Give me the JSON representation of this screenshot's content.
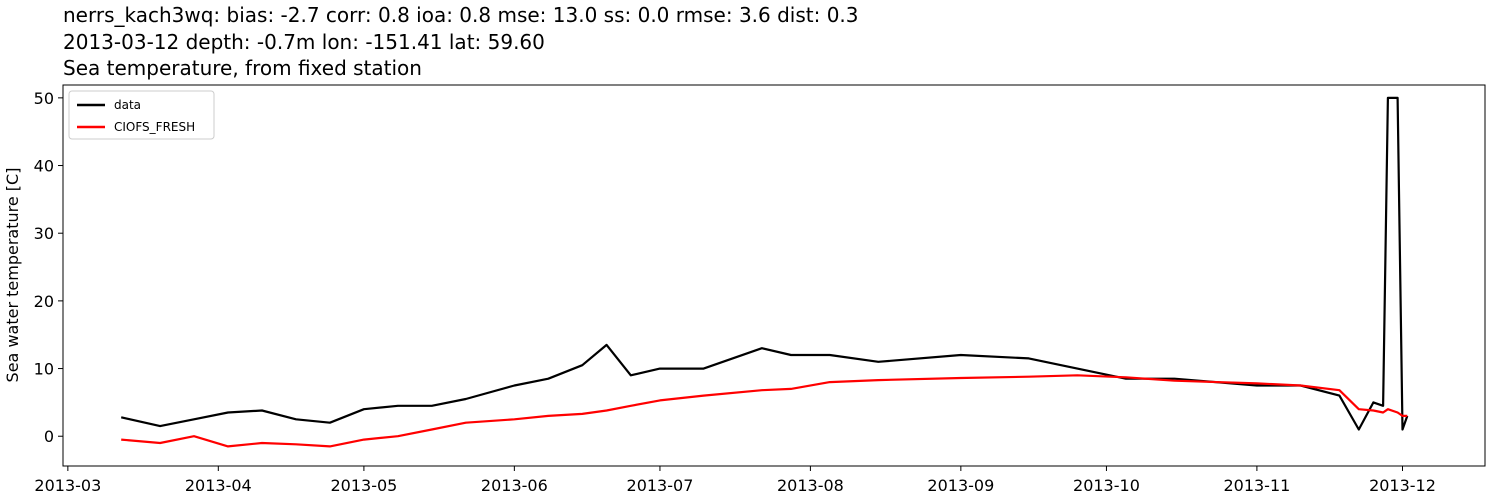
{
  "chart_data": {
    "type": "line",
    "title": "nerrs_kach3wq: bias: -2.7  corr: 0.8  ioa: 0.8  mse: 13.0  ss: 0.0  rmse: 3.6  dist: 0.3",
    "subtitle": "2013-03-12 depth: -0.7m lon: -151.41 lat: 59.60",
    "subtitle2": "Sea temperature, from fixed station",
    "y_label": "Sea water temperature [C]",
    "x": [
      "2013-03-12",
      "2013-03-20",
      "2013-03-27",
      "2013-04-03",
      "2013-04-10",
      "2013-04-17",
      "2013-04-24",
      "2013-05-01",
      "2013-05-08",
      "2013-05-15",
      "2013-05-22",
      "2013-06-01",
      "2013-06-08",
      "2013-06-15",
      "2013-06-20",
      "2013-06-25",
      "2013-07-01",
      "2013-07-10",
      "2013-07-22",
      "2013-07-28",
      "2013-08-05",
      "2013-08-15",
      "2013-09-01",
      "2013-09-15",
      "2013-09-25",
      "2013-10-05",
      "2013-10-15",
      "2013-11-01",
      "2013-11-10",
      "2013-11-18",
      "2013-11-22",
      "2013-11-25",
      "2013-11-27",
      "2013-11-28",
      "2013-11-30",
      "2013-12-01",
      "2013-12-02"
    ],
    "series": [
      {
        "name": "data",
        "color": "#000000",
        "values": [
          2.8,
          1.5,
          2.5,
          3.5,
          3.8,
          2.5,
          2,
          4,
          4.5,
          4.5,
          5.5,
          7.5,
          8.5,
          10.5,
          13.5,
          9,
          10,
          10,
          13,
          12,
          12,
          11,
          12,
          11.5,
          10,
          8.5,
          8.5,
          7.5,
          7.5,
          6,
          1,
          5,
          4.5,
          50,
          50,
          1,
          3
        ]
      },
      {
        "name": "CIOFS_FRESH",
        "color": "#ff0000",
        "values": [
          -0.5,
          -1,
          0,
          -1.5,
          -1,
          -1.2,
          -1.5,
          -0.5,
          0,
          1,
          2,
          2.5,
          3,
          3.3,
          3.8,
          4.5,
          5.3,
          6,
          6.8,
          7,
          8,
          8.3,
          8.6,
          8.8,
          9,
          8.7,
          8.2,
          7.8,
          7.5,
          6.8,
          4,
          3.8,
          3.5,
          4,
          3.5,
          3,
          3
        ]
      }
    ],
    "xlim": [
      "2013-02-28",
      "2013-12-18"
    ],
    "xticks": [
      "2013-03",
      "2013-04",
      "2013-05",
      "2013-06",
      "2013-07",
      "2013-08",
      "2013-09",
      "2013-10",
      "2013-11",
      "2013-12"
    ],
    "ylim": [
      -4.4,
      51.9
    ],
    "yticks": [
      0,
      10,
      20,
      30,
      40,
      50
    ],
    "legend": "upper left"
  }
}
